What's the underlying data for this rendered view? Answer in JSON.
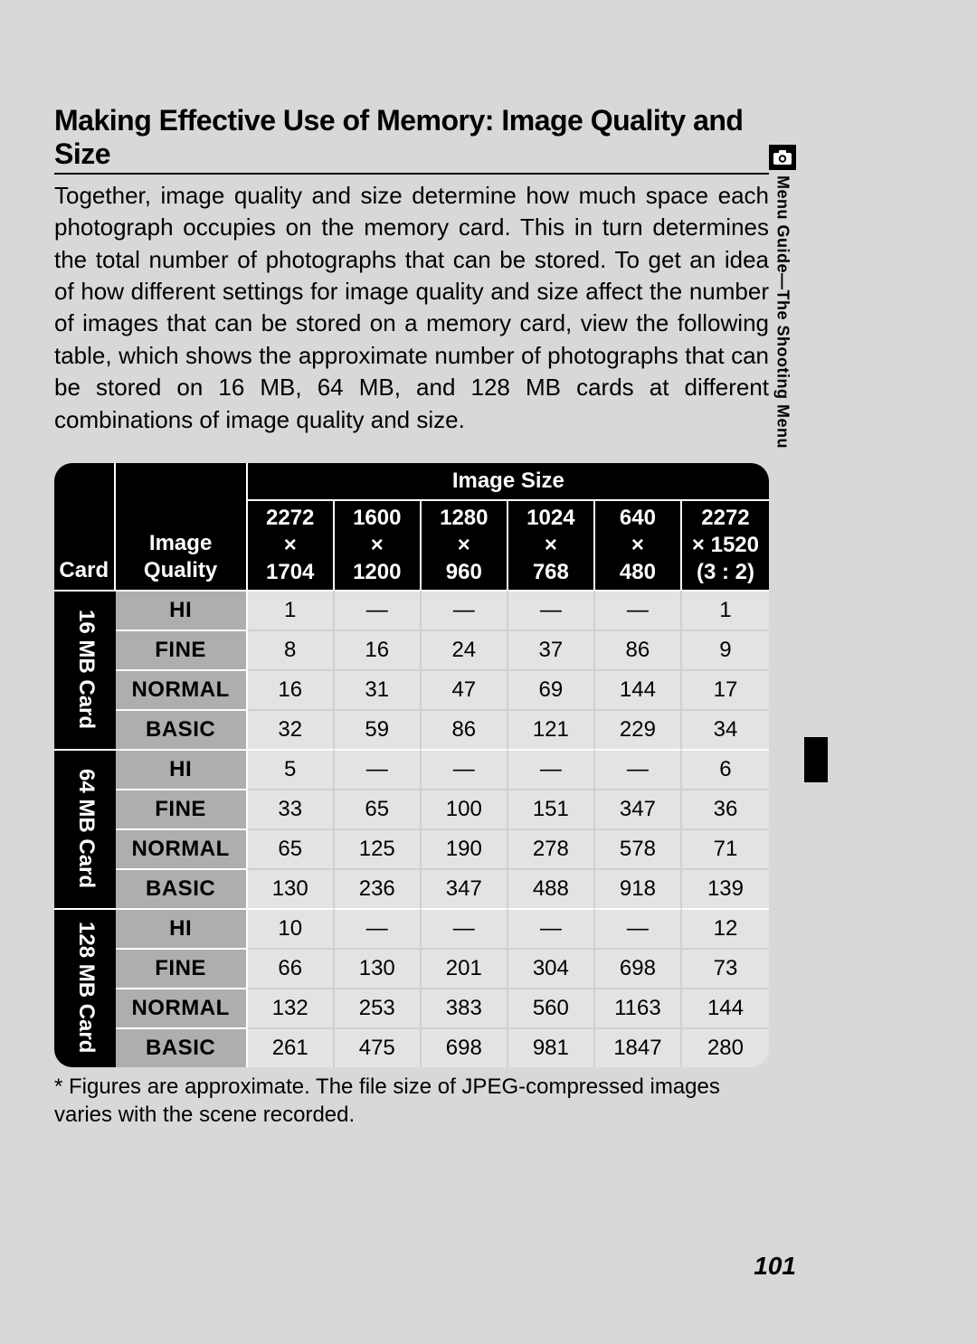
{
  "title": "Making Effective Use of Memory: Image Quality and Size",
  "body": "Together, image quality and size determine how much space each photograph occupies on the memory card.  This in turn determines the total number of photographs that can be stored.  To get an idea of how different settings for image quality and size affect the number of images that can be stored on a memory card, view the following table, which shows the approximate number of photographs that can be stored on 16 MB, 64 MB, and 128 MB cards at different combinations of image quality and size.",
  "footnote": "* Figures are approximate.  The file size of JPEG-compressed images varies with the scene recorded.",
  "page_number": "101",
  "sidetab": "Menu Guide—The Shooting Menu",
  "table": {
    "header_image_size": "Image Size",
    "header_card": "Card",
    "header_quality": "Image\nQuality",
    "sizes": [
      "2272\n×\n1704",
      "1600\n×\n1200",
      "1280\n×\n960",
      "1024\n×\n768",
      "640\n×\n480",
      "2272\n× 1520\n(3 : 2)"
    ],
    "groups": [
      {
        "card": "16 MB Card",
        "rows": [
          {
            "q": "HI",
            "v": [
              "1",
              "—",
              "—",
              "—",
              "—",
              "1"
            ]
          },
          {
            "q": "FINE",
            "v": [
              "8",
              "16",
              "24",
              "37",
              "86",
              "9"
            ]
          },
          {
            "q": "NORMAL",
            "v": [
              "16",
              "31",
              "47",
              "69",
              "144",
              "17"
            ]
          },
          {
            "q": "BASIC",
            "v": [
              "32",
              "59",
              "86",
              "121",
              "229",
              "34"
            ]
          }
        ]
      },
      {
        "card": "64 MB Card",
        "rows": [
          {
            "q": "HI",
            "v": [
              "5",
              "—",
              "—",
              "—",
              "—",
              "6"
            ]
          },
          {
            "q": "FINE",
            "v": [
              "33",
              "65",
              "100",
              "151",
              "347",
              "36"
            ]
          },
          {
            "q": "NORMAL",
            "v": [
              "65",
              "125",
              "190",
              "278",
              "578",
              "71"
            ]
          },
          {
            "q": "BASIC",
            "v": [
              "130",
              "236",
              "347",
              "488",
              "918",
              "139"
            ]
          }
        ]
      },
      {
        "card": "128 MB Card",
        "rows": [
          {
            "q": "HI",
            "v": [
              "10",
              "—",
              "—",
              "—",
              "—",
              "12"
            ]
          },
          {
            "q": "FINE",
            "v": [
              "66",
              "130",
              "201",
              "304",
              "698",
              "73"
            ]
          },
          {
            "q": "NORMAL",
            "v": [
              "132",
              "253",
              "383",
              "560",
              "1163",
              "144"
            ]
          },
          {
            "q": "BASIC",
            "v": [
              "261",
              "475",
              "698",
              "981",
              "1847",
              "280"
            ]
          }
        ]
      }
    ]
  }
}
